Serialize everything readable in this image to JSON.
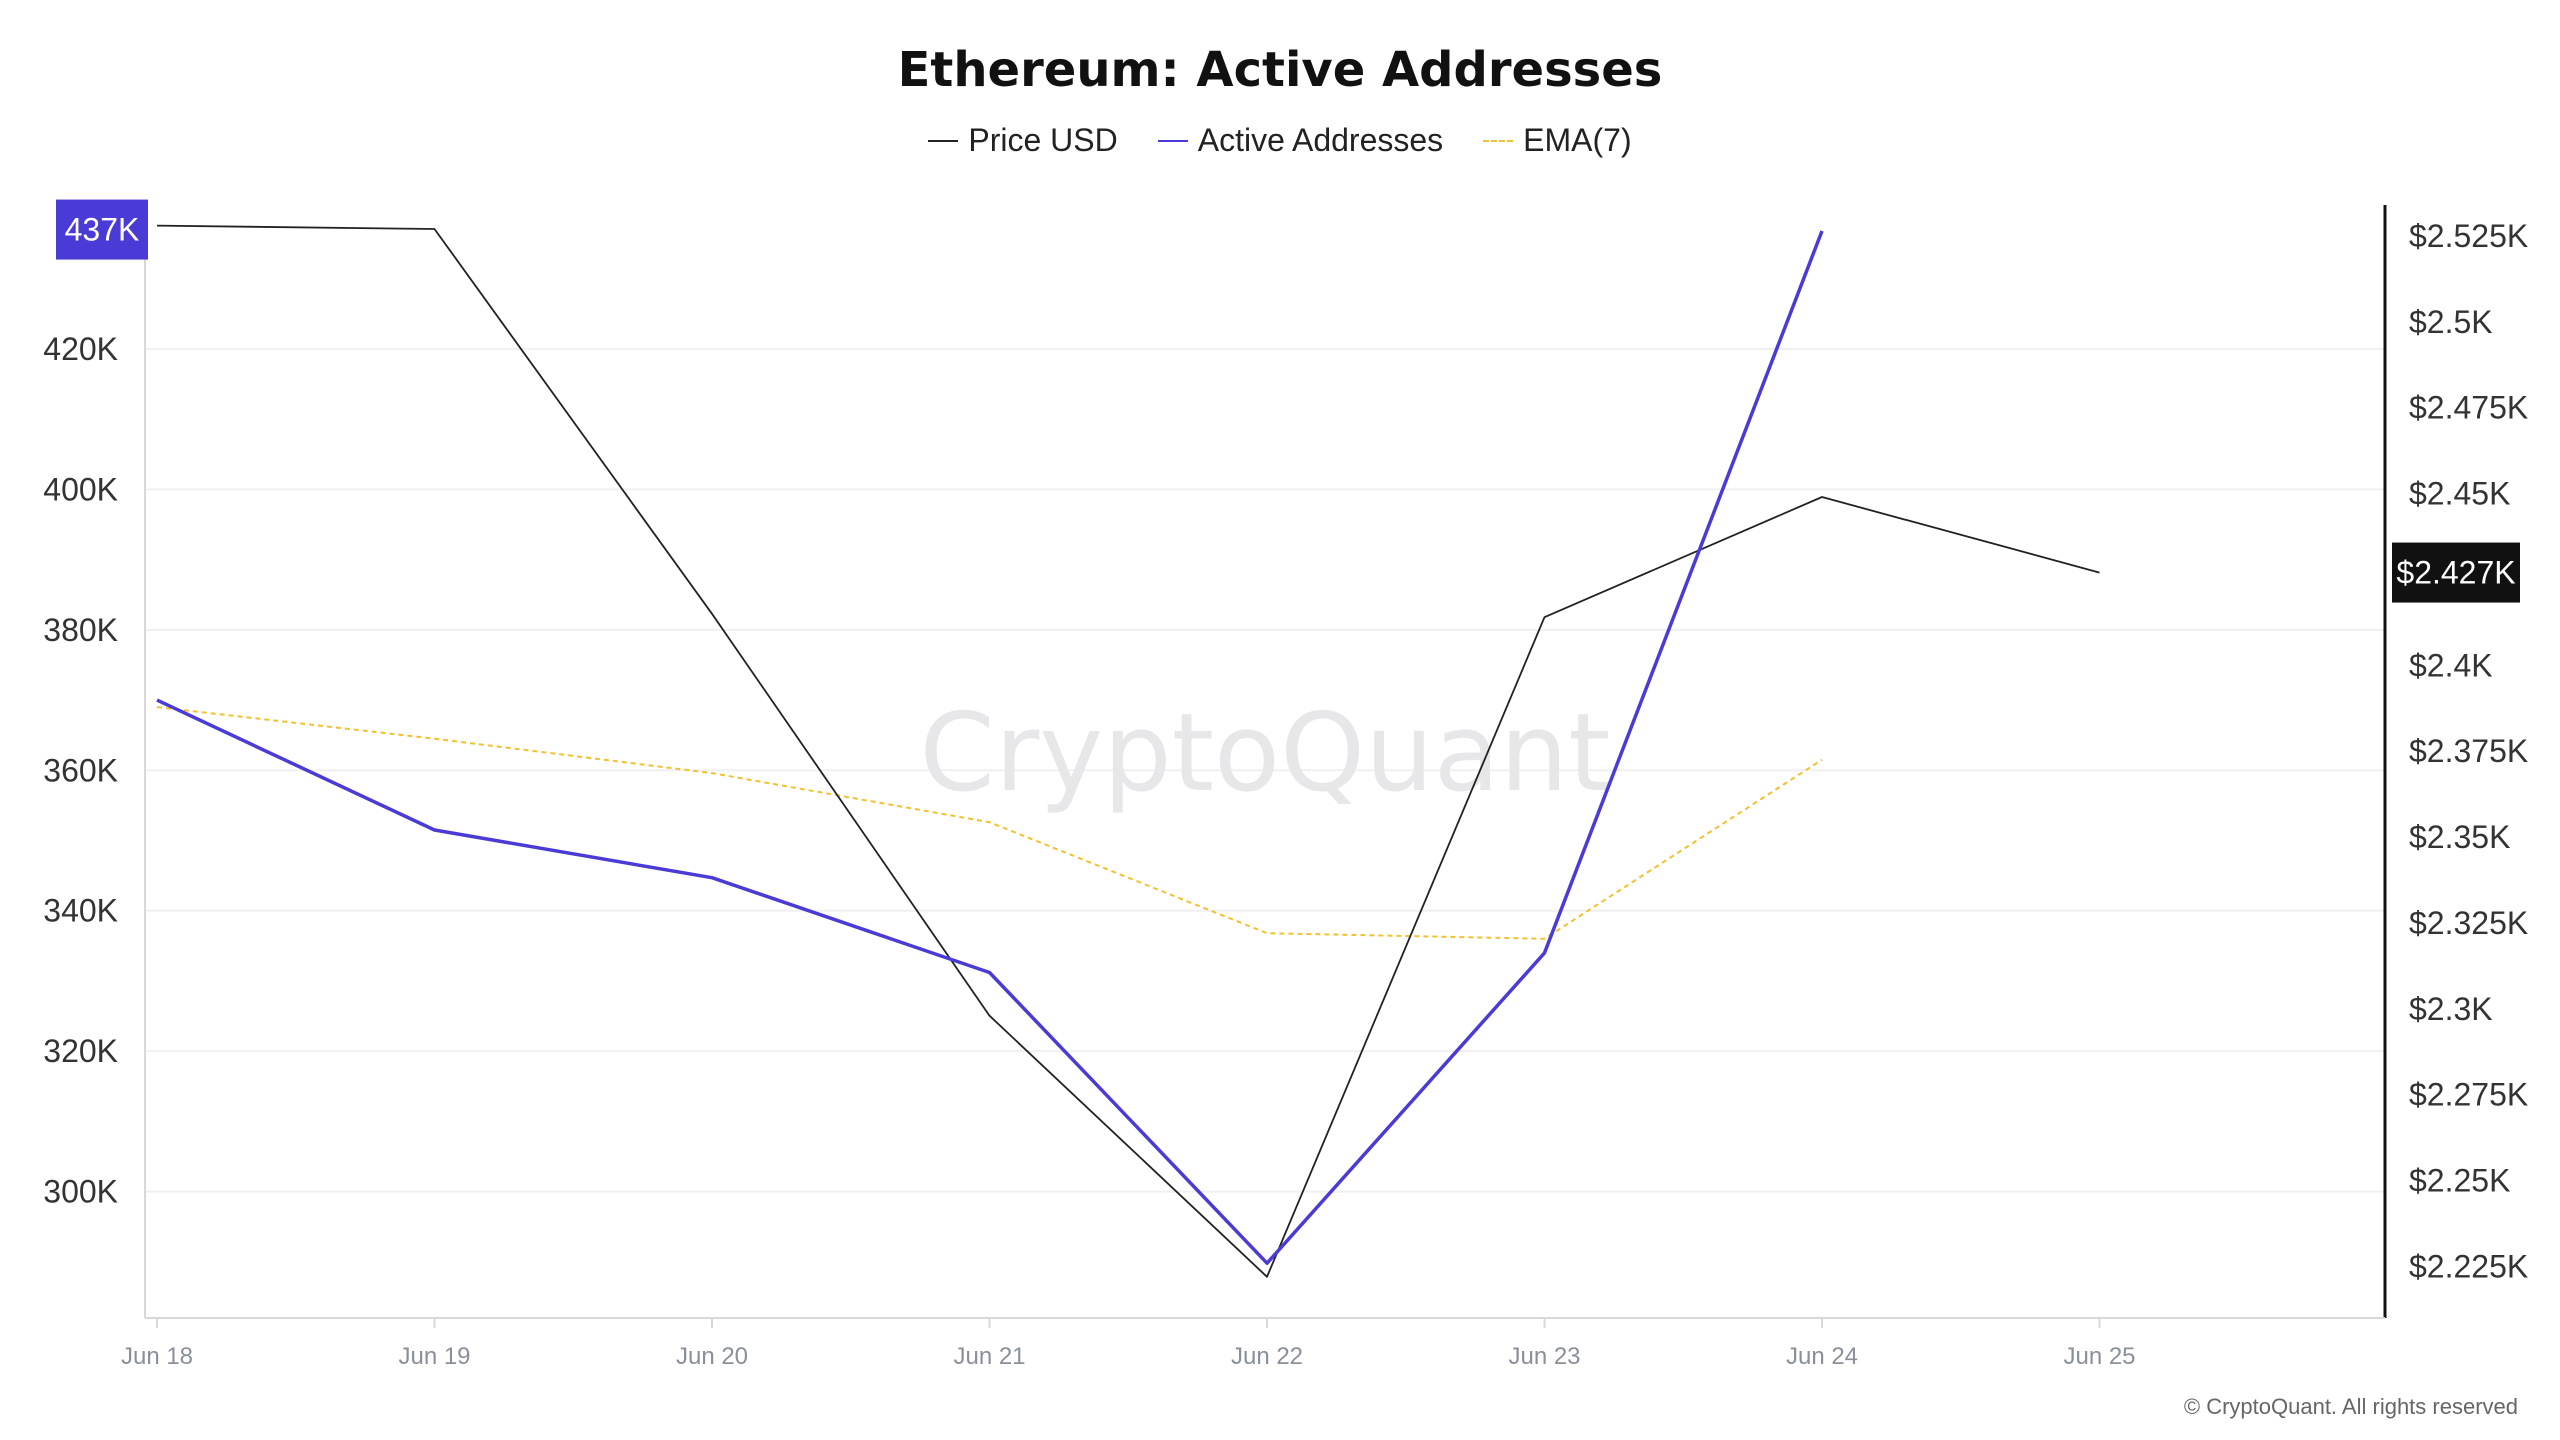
{
  "chart_data": {
    "type": "line",
    "title": "Ethereum: Active Addresses",
    "xlabel": "",
    "ylabel": "",
    "categories": [
      "Jun 18",
      "Jun 19",
      "Jun 20",
      "Jun 21",
      "Jun 22",
      "Jun 23",
      "Jun 24",
      "Jun 25"
    ],
    "series": [
      {
        "name": "Price USD",
        "axis": "right",
        "color": "#222222",
        "style": "solid",
        "values": [
          2528,
          2527,
          2415,
          2298,
          2222,
          2414,
          2449,
          2427
        ]
      },
      {
        "name": "Active Addresses",
        "axis": "left",
        "color": "#4b3bd6",
        "style": "solid",
        "values": [
          370000,
          351500,
          344700,
          331200,
          289800,
          334000,
          436800,
          null
        ]
      },
      {
        "name": "EMA(7)",
        "axis": "left",
        "color": "#f2c12e",
        "style": "dashed",
        "values": [
          369000,
          364500,
          359600,
          352600,
          336800,
          336000,
          361500,
          null
        ]
      }
    ],
    "y_left": {
      "ticks": [
        300000,
        320000,
        340000,
        360000,
        380000,
        400000,
        420000
      ],
      "tick_labels": [
        "300K",
        "320K",
        "340K",
        "360K",
        "380K",
        "400K",
        "420K"
      ],
      "ylim": [
        282000,
        440500
      ]
    },
    "y_right": {
      "ticks": [
        2225,
        2250,
        2275,
        2300,
        2325,
        2350,
        2375,
        2400,
        2450,
        2475,
        2500,
        2525
      ],
      "tick_labels": [
        "$2.225K",
        "$2.25K",
        "$2.275K",
        "$2.3K",
        "$2.325K",
        "$2.35K",
        "$2.375K",
        "$2.4K",
        "$2.45K",
        "$2.475K",
        "$2.5K",
        "$2.525K"
      ],
      "ylim": [
        2210,
        2534
      ]
    },
    "markers": {
      "left_value": 437000,
      "left_label": "437K",
      "left_color": "#4b3bd6",
      "right_value": 2427,
      "right_label": "$2.427K",
      "right_color": "#111111"
    },
    "grid": true,
    "legend_position": "top-center",
    "watermark": "CryptoQuant"
  },
  "copyright": "© CryptoQuant. All rights reserved"
}
